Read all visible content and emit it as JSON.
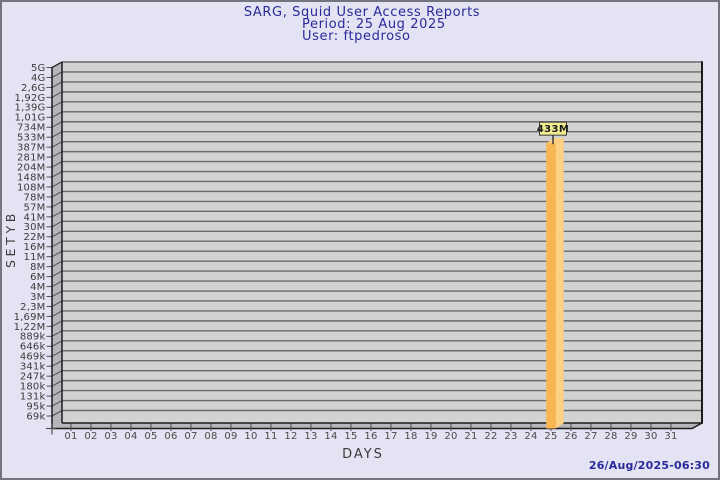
{
  "header": {
    "title": "SARG, Squid User Access Reports",
    "period": "Period: 25 Aug 2025",
    "user": "User: ftpedroso"
  },
  "footer": {
    "generated": "26/Aug/2025-06:30"
  },
  "chart_data": {
    "type": "bar",
    "title": "SARG, Squid User Access Reports",
    "subtitle": [
      "Period: 25 Aug 2025",
      "User: ftpedroso"
    ],
    "xlabel": "DAYS",
    "ylabel": "BYTES",
    "y_scale": "logarithmic-irregular",
    "x_tick_labels": [
      "01",
      "02",
      "03",
      "04",
      "05",
      "06",
      "07",
      "08",
      "09",
      "10",
      "11",
      "12",
      "13",
      "14",
      "15",
      "16",
      "17",
      "18",
      "19",
      "20",
      "21",
      "22",
      "23",
      "24",
      "25",
      "26",
      "27",
      "28",
      "29",
      "30",
      "31"
    ],
    "y_tick_labels": [
      "5G",
      "4G",
      "2,6G",
      "1,92G",
      "1,39G",
      "1,01G",
      "734M",
      "533M",
      "387M",
      "281M",
      "204M",
      "148M",
      "108M",
      "78M",
      "57M",
      "41M",
      "30M",
      "22M",
      "16M",
      "11M",
      "8M",
      "6M",
      "4M",
      "3M",
      "2,3M",
      "1,69M",
      "1,22M",
      "889k",
      "646k",
      "469k",
      "341k",
      "247k",
      "180k",
      "131k",
      "95k",
      "69k"
    ],
    "y_tick_values": [
      5000000000,
      4000000000,
      2600000000,
      1920000000,
      1390000000,
      1010000000,
      734000000,
      533000000,
      387000000,
      281000000,
      204000000,
      148000000,
      108000000,
      78000000,
      57000000,
      41000000,
      30000000,
      22000000,
      16000000,
      11000000,
      8000000,
      6000000,
      4000000,
      3000000,
      2300000,
      1690000,
      1220000,
      889000,
      646000,
      469000,
      341000,
      247000,
      180000,
      131000,
      95000,
      69000
    ],
    "bars": [
      {
        "x": "25",
        "value": 433000000,
        "value_label": "433M"
      }
    ],
    "legend": "none",
    "grid": "horizontal",
    "colors": {
      "page_bg": "#e3e3f3",
      "plot_bg": "#d2d2d2",
      "wall": "#b6b6ba",
      "grid": "#6a6a6a",
      "frame": "#1c1c1c",
      "tick": "#4f4f4f",
      "bar_front": "#f9b552",
      "bar_side": "#fdd083",
      "bar_top": "#fdd083",
      "callout_bg": "#f0eb8e",
      "callout_border": "#3a3a3a",
      "title_text": "#2a2a9b"
    }
  }
}
